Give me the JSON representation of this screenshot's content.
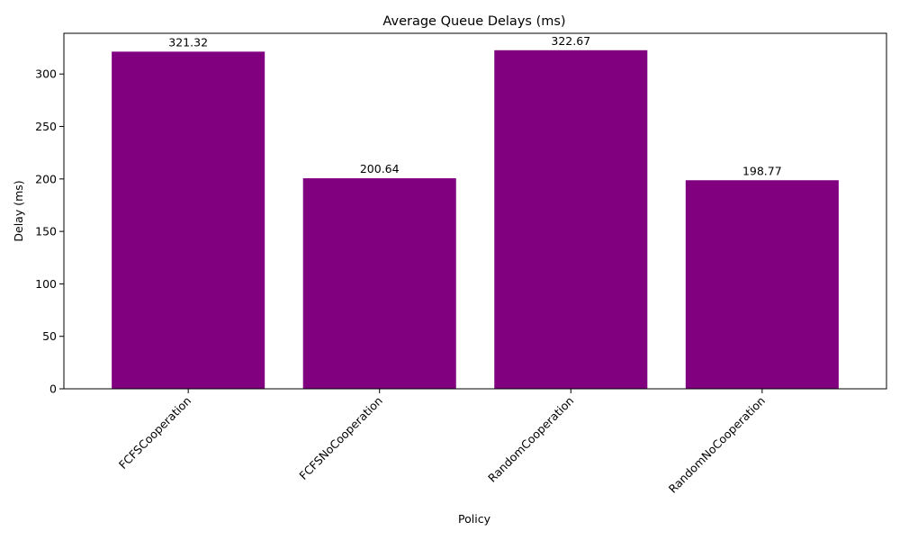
{
  "chart_data": {
    "type": "bar",
    "title": "Average Queue Delays (ms)",
    "xlabel": "Policy",
    "ylabel": "Delay (ms)",
    "categories": [
      "FCFSCooperation",
      "FCFSNoCooperation",
      "RandomCooperation",
      "RandomNoCooperation"
    ],
    "values": [
      321.32,
      200.64,
      322.67,
      198.77
    ],
    "value_labels": [
      "321.32",
      "200.64",
      "322.67",
      "198.77"
    ],
    "ylim": [
      0,
      338.8
    ],
    "yticks": [
      0,
      50,
      100,
      150,
      200,
      250,
      300
    ],
    "bar_color": "#800080",
    "grid": false,
    "legend": false
  }
}
